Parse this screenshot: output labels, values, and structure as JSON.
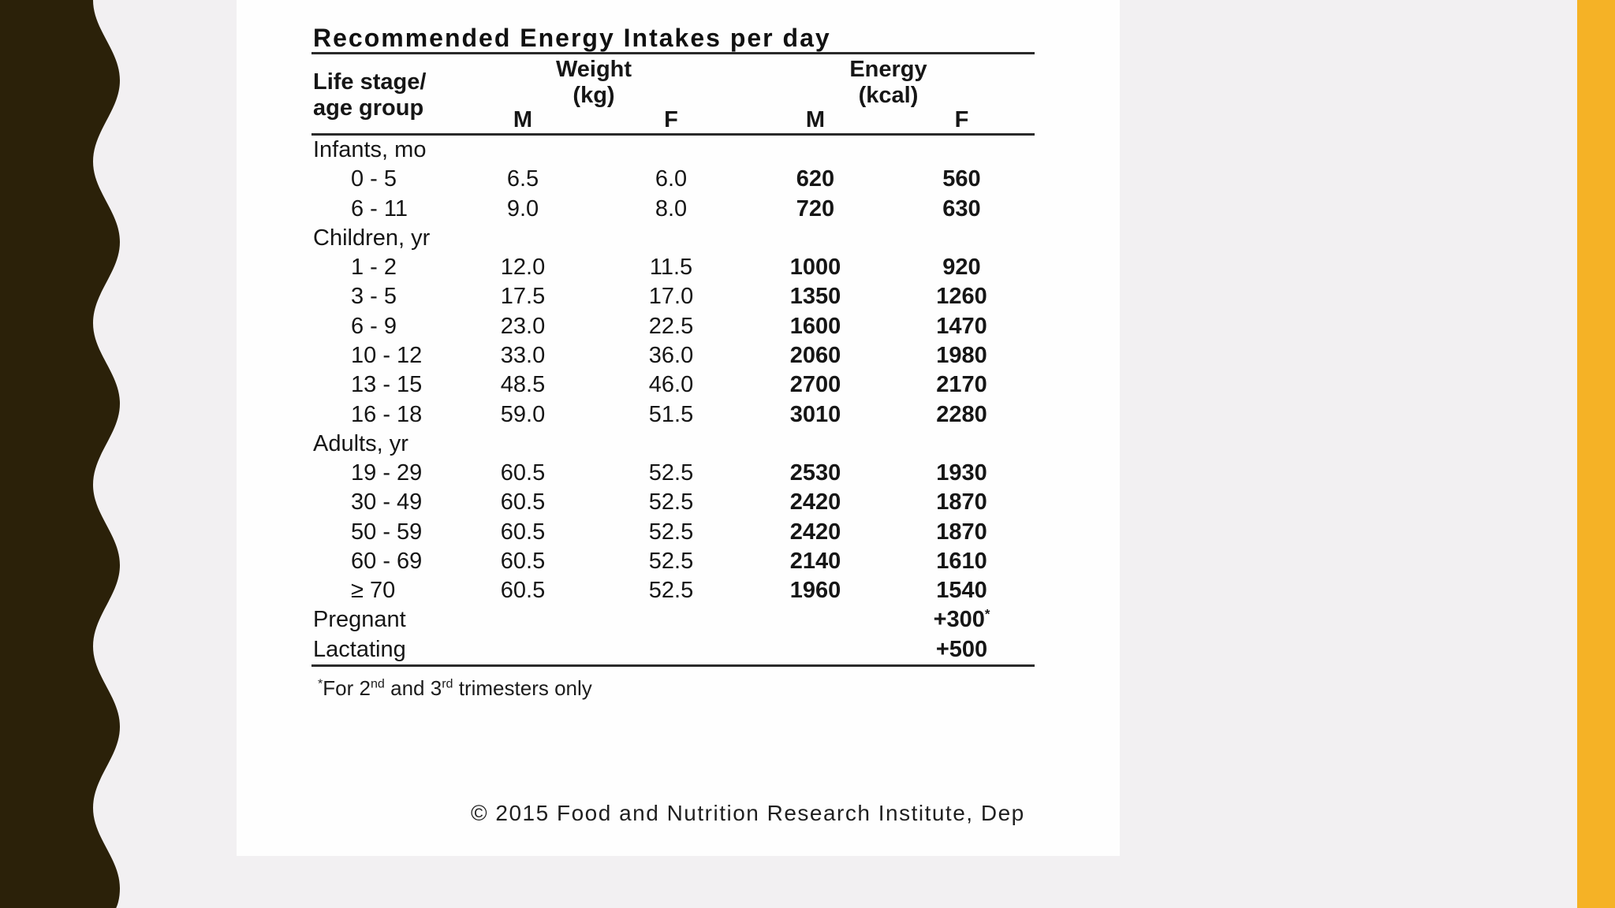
{
  "page": {
    "background_color": "#F2F0F2",
    "accent_bar_color": "#F5B226",
    "wave_color": "#2B2109",
    "panel_color": "#FEFEFE"
  },
  "title": "Recommended Energy Intakes per day",
  "table": {
    "header": {
      "row_label_line1": "Life stage/",
      "row_label_line2": "age group",
      "weight_label": "Weight",
      "weight_unit": "(kg)",
      "energy_label": "Energy",
      "energy_unit": "(kcal)",
      "m": "M",
      "f": "F"
    },
    "rows": [
      {
        "label": "Infants, mo",
        "section": true
      },
      {
        "label": "0 - 5",
        "indent": true,
        "wm": "6.5",
        "wf": "6.0",
        "em": "620",
        "ef": "560"
      },
      {
        "label": "6 - 11",
        "indent": true,
        "wm": "9.0",
        "wf": "8.0",
        "em": "720",
        "ef": "630"
      },
      {
        "label": "Children, yr",
        "section": true
      },
      {
        "label": "1 - 2",
        "indent": true,
        "wm": "12.0",
        "wf": "11.5",
        "em": "1000",
        "ef": "920"
      },
      {
        "label": "3 - 5",
        "indent": true,
        "wm": "17.5",
        "wf": "17.0",
        "em": "1350",
        "ef": "1260"
      },
      {
        "label": "6 - 9",
        "indent": true,
        "wm": "23.0",
        "wf": "22.5",
        "em": "1600",
        "ef": "1470"
      },
      {
        "label": "10 - 12",
        "indent": true,
        "wm": "33.0",
        "wf": "36.0",
        "em": "2060",
        "ef": "1980"
      },
      {
        "label": "13 - 15",
        "indent": true,
        "wm": "48.5",
        "wf": "46.0",
        "em": "2700",
        "ef": "2170"
      },
      {
        "label": "16 - 18",
        "indent": true,
        "wm": "59.0",
        "wf": "51.5",
        "em": "3010",
        "ef": "2280"
      },
      {
        "label": "Adults, yr",
        "section": true
      },
      {
        "label": "19 - 29",
        "indent": true,
        "wm": "60.5",
        "wf": "52.5",
        "em": "2530",
        "ef": "1930"
      },
      {
        "label": "30 - 49",
        "indent": true,
        "wm": "60.5",
        "wf": "52.5",
        "em": "2420",
        "ef": "1870"
      },
      {
        "label": "50 - 59",
        "indent": true,
        "wm": "60.5",
        "wf": "52.5",
        "em": "2420",
        "ef": "1870"
      },
      {
        "label": "60 - 69",
        "indent": true,
        "wm": "60.5",
        "wf": "52.5",
        "em": "2140",
        "ef": "1610"
      },
      {
        "label": "≥ 70",
        "indent": true,
        "wm": "60.5",
        "wf": "52.5",
        "em": "1960",
        "ef": "1540"
      },
      {
        "label": "Pregnant",
        "ef": "+300",
        "ef_sup": "*"
      },
      {
        "label": "Lactating",
        "ef": "+500"
      }
    ]
  },
  "footnote": {
    "marker": "*",
    "parts": [
      {
        "t": "For 2"
      },
      {
        "sup": "nd"
      },
      {
        "t": " and 3"
      },
      {
        "sup": "rd"
      },
      {
        "t": " trimesters only"
      }
    ]
  },
  "copyright": "© 2015 Food and Nutrition Research Institute, Dep"
}
